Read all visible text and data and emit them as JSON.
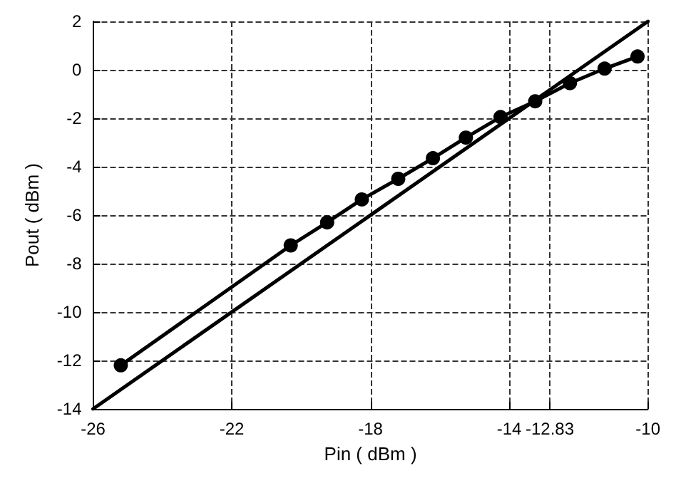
{
  "chart_data": {
    "type": "line",
    "xlabel": "Pin ( dBm )",
    "ylabel": "Pout ( dBm )",
    "xlim": [
      -26,
      -10
    ],
    "xticks": [
      -26,
      -22,
      -18,
      -14,
      -12.83,
      -10
    ],
    "ylim": [
      -14,
      2
    ],
    "yticks": [
      -14,
      -12,
      -10,
      -8,
      -6,
      -4,
      -2,
      0,
      2
    ],
    "grid": true,
    "line_style": "solid",
    "series": [
      {
        "color": "#000000",
        "marker": "circle",
        "x": [
          -25.2,
          -20.3,
          -19.25,
          -18.25,
          -17.2,
          -16.2,
          -15.25,
          -14.25,
          -13.25,
          -12.25,
          -11.25,
          -10.3
        ],
        "values": [
          -12.2,
          -7.25,
          -6.3,
          -5.35,
          -4.5,
          -3.65,
          -2.8,
          -1.95,
          -1.3,
          -0.55,
          0.05,
          0.55
        ]
      },
      {
        "color": "#000000",
        "marker": "none",
        "x": [
          -26,
          -10
        ],
        "values": [
          -14,
          2
        ]
      }
    ]
  }
}
